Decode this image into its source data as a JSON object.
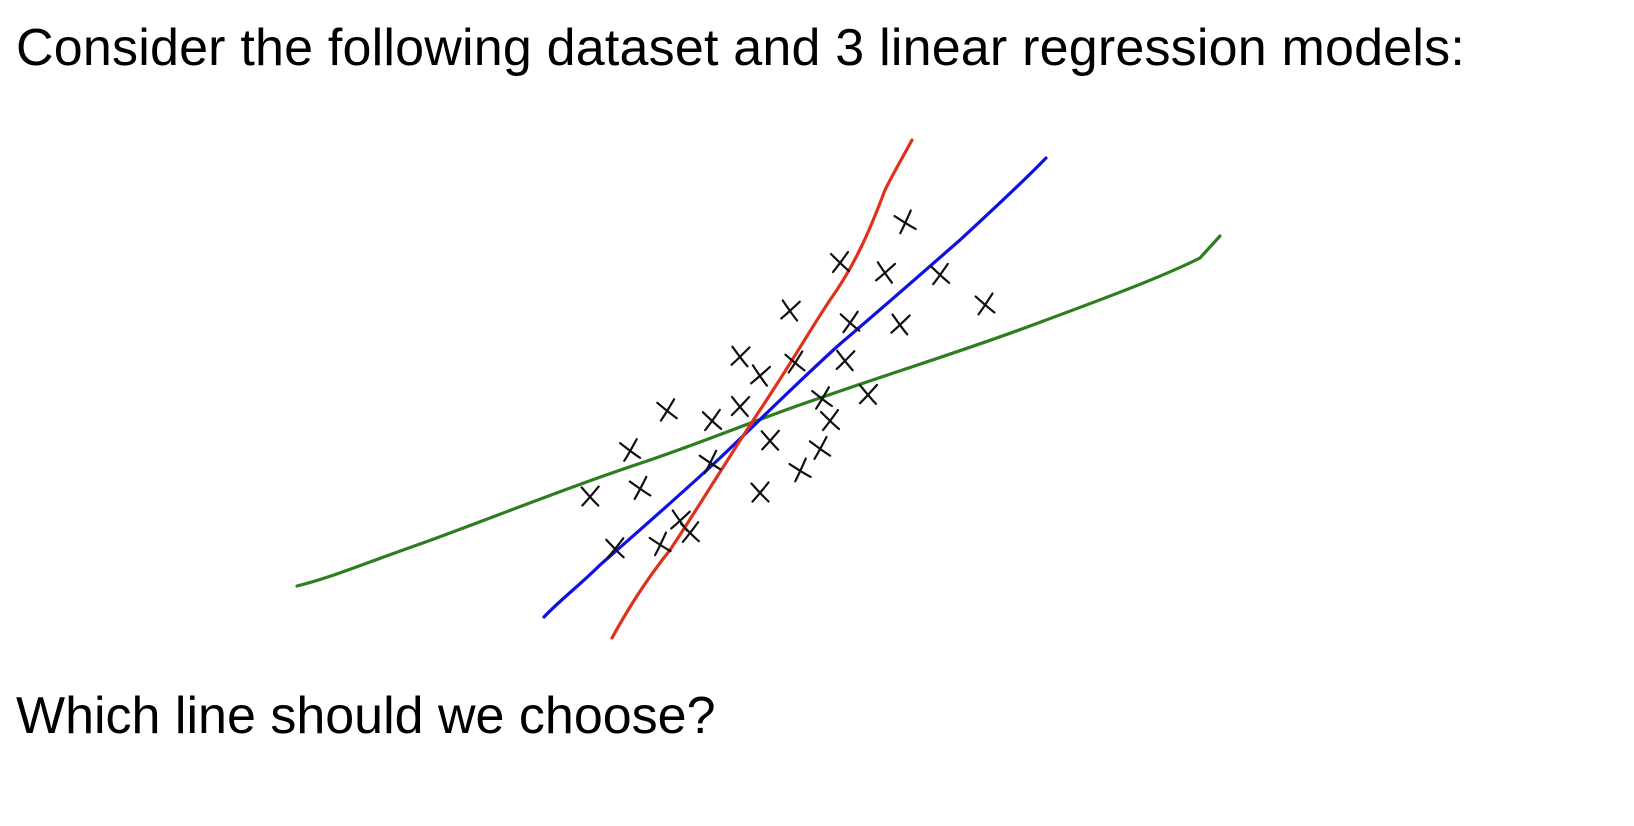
{
  "slide": {
    "title": "Consider the following dataset and 3 linear regression models:",
    "question": "Which line should we choose?"
  },
  "lines": [
    {
      "id": "green",
      "color": "#2e7d1f"
    },
    {
      "id": "blue",
      "color": "#1010e0"
    },
    {
      "id": "red",
      "color": "#e0301e"
    }
  ],
  "mark_icon": "hand-drawn-x",
  "data_point_count": 30
}
